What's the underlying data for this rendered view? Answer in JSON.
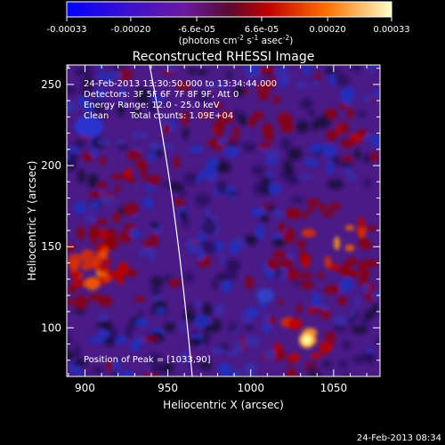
{
  "colorbar": {
    "tick_labels": [
      "-0.00033",
      "-0.00020",
      "-6.6e-05",
      "6.6e-05",
      "0.00020",
      "0.00033"
    ],
    "tick_values": [
      -0.00033,
      -0.0002,
      -6.6e-05,
      6.6e-05,
      0.0002,
      0.00033
    ],
    "range": [
      -0.00033,
      0.00033
    ],
    "unit_main": "(photons cm",
    "unit_exp1": "-2",
    "unit_mid1": " s",
    "unit_exp2": "-1",
    "unit_mid2": " asec",
    "unit_exp3": "-2",
    "unit_end": ")"
  },
  "plot": {
    "title": "Reconstructed RHESSI Image",
    "xlabel": "Heliocentric X (arcsec)",
    "ylabel": "Heliocentric Y (arcsec)",
    "xlim": [
      889,
      1078
    ],
    "ylim": [
      70,
      262
    ],
    "x_ticks": [
      900,
      950,
      1000,
      1050
    ],
    "y_ticks": [
      100,
      150,
      200,
      250
    ],
    "x_tick_labels": [
      "900",
      "950",
      "1000",
      "1050"
    ],
    "y_tick_labels": [
      "100",
      "150",
      "200",
      "250"
    ]
  },
  "annotations": {
    "line1": "24-Feb-2013 13:30:50.000 to 13:34:44.000",
    "line2": "Detectors: 3F 5F 6F 7F 8F 9F, Att 0",
    "line3": "Energy Range: 12.0 - 25.0 keV",
    "line4_a": "Clean",
    "line4_b": "Total counts: 1.09E+04",
    "peak": "Position of Peak = [1033,90]"
  },
  "footer": {
    "timestamp": "24-Feb-2013 08:34"
  },
  "colors": {
    "negative": "#0000ff",
    "zero": "#5a1a8a",
    "positive": "#ffff80",
    "limb": "#ffffff"
  }
}
